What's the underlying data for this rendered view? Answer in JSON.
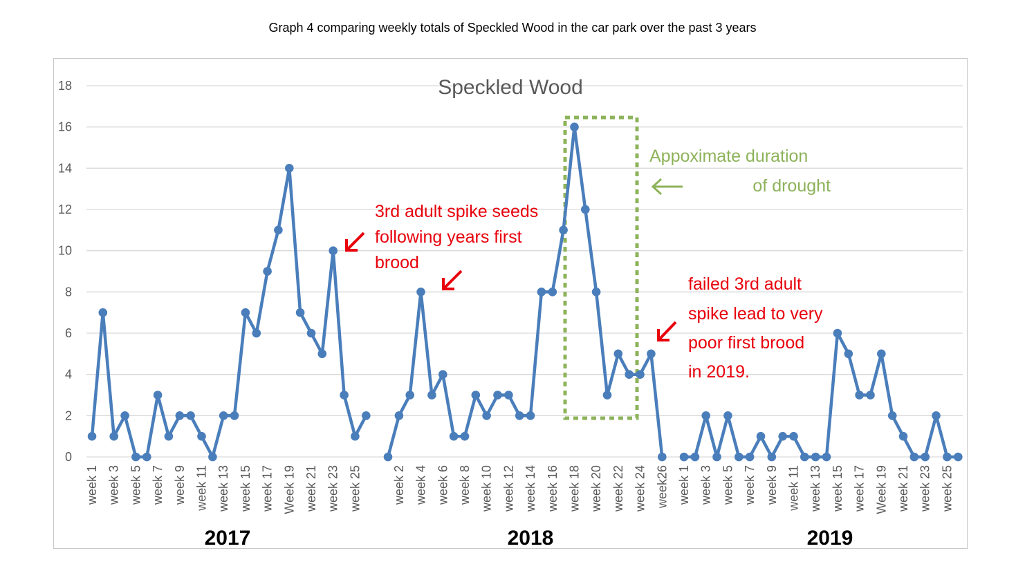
{
  "caption": "Graph 4 comparing weekly totals of Speckled Wood in the car park over the past 3 years",
  "chart_data": {
    "type": "line",
    "title": "Speckled Wood",
    "ylim": [
      0,
      18
    ],
    "yticks": [
      0,
      2,
      4,
      6,
      8,
      10,
      12,
      14,
      16,
      18
    ],
    "grid": true,
    "series_color": "#4a7ebb",
    "segments": [
      {
        "year": "2017",
        "categories": [
          "week 1",
          "week 2",
          "week 3",
          "week 4",
          "week 5",
          "week 6",
          "week 7",
          "week 8",
          "week 9",
          "week 10",
          "week 11",
          "week 12",
          "week 13",
          "week 14",
          "week 15",
          "week 16",
          "week 17",
          "week 18",
          "Week 19",
          "week 20",
          "week 21",
          "week 22",
          "week 23",
          "week 24",
          "week 25",
          "week 26"
        ],
        "tick_labels": [
          "week 1",
          "",
          "week 3",
          "",
          "week 5",
          "",
          "week 7",
          "",
          "week 9",
          "",
          "week 11",
          "",
          "week 13",
          "",
          "week 15",
          "",
          "week 17",
          "",
          "Week 19",
          "",
          "week 21",
          "",
          "week 23",
          "",
          "week 25",
          ""
        ],
        "values": [
          1,
          7,
          1,
          2,
          0,
          0,
          3,
          1,
          2,
          2,
          1,
          0,
          2,
          2,
          7,
          6,
          9,
          11,
          14,
          7,
          6,
          5,
          10,
          3,
          1,
          2
        ]
      },
      {
        "year": "2018",
        "categories": [
          "week 1",
          "week 2",
          "week 3",
          "week 4",
          "week 5",
          "week 6",
          "week 7",
          "week 8",
          "week 9",
          "week 10",
          "week 11",
          "week 12",
          "week 13",
          "week 14",
          "week 15",
          "week 16",
          "week 17",
          "week 18",
          "week 19",
          "week 20",
          "week 21",
          "week 22",
          "week 23",
          "week 24",
          "week 25",
          "week26"
        ],
        "tick_labels": [
          "",
          "week 2",
          "",
          "week 4",
          "",
          "week 6",
          "",
          "week 8",
          "",
          "week 10",
          "",
          "week 12",
          "",
          "week 14",
          "",
          "week 16",
          "",
          "week 18",
          "",
          "week 20",
          "",
          "week 22",
          "",
          "week 24",
          "",
          "week26"
        ],
        "values": [
          0,
          2,
          3,
          8,
          3,
          4,
          1,
          1,
          3,
          2,
          3,
          3,
          2,
          2,
          8,
          8,
          11,
          16,
          12,
          8,
          3,
          5,
          4,
          4,
          5,
          0
        ]
      },
      {
        "year": "2019",
        "categories": [
          "week 1",
          "week 2",
          "week 3",
          "week 4",
          "week 5",
          "week 6",
          "week 7",
          "week 8",
          "week 9",
          "week 10",
          "week 11",
          "week 12",
          "week 13",
          "week 14",
          "week 15",
          "week 16",
          "week 17",
          "week 18",
          "Week 19",
          "week 20",
          "week 21",
          "week 22",
          "week 23",
          "week 24",
          "week 25",
          "week 26"
        ],
        "tick_labels": [
          "week 1",
          "",
          "week 3",
          "",
          "week 5",
          "",
          "week 7",
          "",
          "week 9",
          "",
          "week 11",
          "",
          "week 13",
          "",
          "week 15",
          "",
          "week 17",
          "",
          "Week 19",
          "",
          "week 21",
          "",
          "week 23",
          "",
          "week 25",
          ""
        ],
        "values": [
          0,
          0,
          2,
          0,
          2,
          0,
          0,
          1,
          0,
          1,
          1,
          0,
          0,
          0,
          6,
          5,
          3,
          3,
          5,
          2,
          1,
          0,
          0,
          2,
          0,
          0
        ]
      }
    ],
    "annotations": {
      "drought_lines": [
        "Appoximate duration",
        "of drought"
      ],
      "drought_color": "#8db35a",
      "seed_lines": [
        "3rd adult spike seeds",
        "following years first",
        "brood"
      ],
      "failed_lines": [
        "failed 3rd adult",
        "spike lead to very",
        "poor first brood",
        "in 2019."
      ],
      "annotation_color": "#e8000b"
    }
  }
}
